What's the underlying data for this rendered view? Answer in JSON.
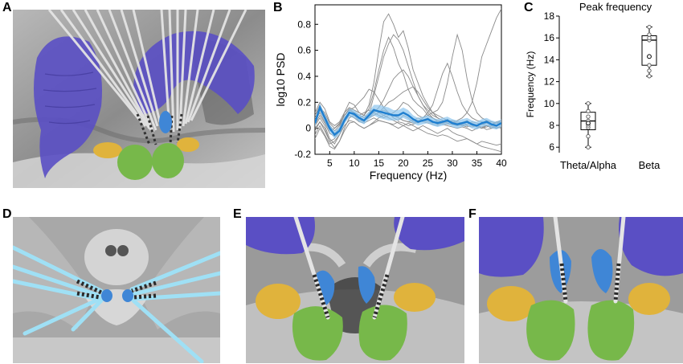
{
  "panels": {
    "a": {
      "letter": "A"
    },
    "b": {
      "letter": "B"
    },
    "c": {
      "letter": "C"
    },
    "d": {
      "letter": "D"
    },
    "e": {
      "letter": "E"
    },
    "f": {
      "letter": "F"
    }
  },
  "colors": {
    "bg_gray": "#8a8a8a",
    "striatum_purple": "#5a4fc4",
    "stn_green": "#77b84a",
    "thalamus_yellow": "#e0b33c",
    "red_nucleus_blue": "#3f86d6",
    "electrode_gray": "#d8d8d8",
    "electrode_cyan": "#9fe0f5",
    "psd_trace": "#8a8a8a",
    "psd_mean": "#1f7fd0",
    "psd_band": "#8cc4ee"
  },
  "chart_data": [
    {
      "type": "line",
      "panel": "B",
      "xlabel": "Frequency (Hz)",
      "ylabel": "log10 PSD",
      "xlim": [
        2,
        40
      ],
      "ylim": [
        -0.2,
        0.95
      ],
      "xticks": [
        5,
        10,
        15,
        20,
        25,
        30,
        35,
        40
      ],
      "yticks": [
        -0.2,
        0,
        0.2,
        0.4,
        0.6,
        0.8
      ],
      "x": [
        2,
        3,
        4,
        5,
        6,
        7,
        8,
        9,
        10,
        11,
        12,
        13,
        14,
        15,
        16,
        17,
        18,
        19,
        20,
        21,
        22,
        23,
        24,
        25,
        26,
        27,
        28,
        29,
        30,
        31,
        32,
        33,
        34,
        35,
        36,
        37,
        38,
        39,
        40
      ],
      "series": [
        {
          "values": [
            0.05,
            0.12,
            0.05,
            -0.02,
            0.0,
            0.03,
            0.1,
            0.14,
            0.12,
            0.1,
            0.08,
            0.12,
            0.15,
            0.12,
            0.1,
            0.12,
            0.08,
            0.06,
            0.1,
            0.08,
            0.05,
            0.04,
            0.06,
            0.08,
            0.05,
            0.03,
            0.05,
            0.07,
            0.04,
            0.02,
            0.04,
            0.06,
            0.03,
            0.02,
            0.04,
            0.06,
            0.03,
            0.02,
            0.05
          ]
        },
        {
          "values": [
            0.1,
            0.18,
            0.1,
            0.02,
            -0.05,
            0.0,
            0.12,
            0.2,
            0.18,
            0.12,
            0.1,
            0.15,
            0.28,
            0.45,
            0.6,
            0.7,
            0.62,
            0.5,
            0.42,
            0.3,
            0.22,
            0.18,
            0.15,
            0.1,
            0.08,
            0.06,
            0.05,
            0.04,
            0.03,
            0.04,
            0.02,
            0.01,
            0.03,
            0.02,
            0.01,
            0.02,
            0.0,
            0.02,
            0.03
          ]
        },
        {
          "values": [
            0.02,
            0.08,
            0.02,
            -0.08,
            -0.12,
            -0.05,
            0.05,
            0.12,
            0.1,
            0.08,
            0.1,
            0.18,
            0.35,
            0.6,
            0.82,
            0.88,
            0.8,
            0.7,
            0.75,
            0.62,
            0.45,
            0.35,
            0.25,
            0.18,
            0.12,
            0.1,
            0.08,
            0.06,
            0.05,
            0.04,
            0.03,
            0.05,
            0.02,
            0.01,
            0.0,
            0.02,
            0.01,
            0.0,
            0.02
          ]
        },
        {
          "values": [
            -0.02,
            0.05,
            0.0,
            -0.1,
            -0.15,
            -0.1,
            0.0,
            0.08,
            0.1,
            0.06,
            0.05,
            0.1,
            0.25,
            0.4,
            0.55,
            0.65,
            0.72,
            0.68,
            0.6,
            0.48,
            0.36,
            0.25,
            0.18,
            0.12,
            0.08,
            0.05,
            0.03,
            0.02,
            0.01,
            0.0,
            0.01,
            0.0,
            -0.02,
            0.0,
            0.01,
            -0.01,
            0.0,
            0.01,
            0.0
          ]
        },
        {
          "values": [
            0.08,
            0.15,
            0.1,
            0.02,
            -0.02,
            0.02,
            0.1,
            0.15,
            0.12,
            0.1,
            0.12,
            0.14,
            0.12,
            0.1,
            0.08,
            0.1,
            0.12,
            0.15,
            0.2,
            0.18,
            0.14,
            0.1,
            0.08,
            0.1,
            0.12,
            0.14,
            0.2,
            0.35,
            0.55,
            0.72,
            0.6,
            0.38,
            0.22,
            0.12,
            0.08,
            0.06,
            0.05,
            0.04,
            0.05
          ]
        },
        {
          "values": [
            0.0,
            0.05,
            -0.02,
            -0.1,
            -0.08,
            -0.02,
            0.05,
            0.1,
            0.08,
            0.05,
            0.04,
            0.06,
            0.08,
            0.06,
            0.05,
            0.04,
            0.03,
            0.05,
            0.04,
            0.02,
            0.03,
            0.05,
            0.08,
            0.12,
            0.18,
            0.3,
            0.42,
            0.5,
            0.4,
            0.28,
            0.18,
            0.12,
            0.08,
            0.06,
            0.05,
            0.04,
            0.03,
            0.05,
            0.06
          ]
        },
        {
          "values": [
            0.12,
            0.2,
            0.15,
            0.05,
            0.02,
            0.05,
            0.12,
            0.16,
            0.14,
            0.12,
            0.1,
            0.08,
            0.1,
            0.12,
            0.14,
            0.12,
            0.1,
            0.08,
            0.06,
            0.05,
            0.04,
            0.06,
            0.05,
            0.04,
            0.03,
            0.02,
            0.04,
            0.05,
            0.04,
            0.06,
            0.08,
            0.12,
            0.2,
            0.35,
            0.55,
            0.65,
            0.75,
            0.85,
            0.92
          ]
        },
        {
          "values": [
            -0.05,
            0.02,
            -0.05,
            -0.12,
            -0.1,
            -0.05,
            0.02,
            0.06,
            0.05,
            0.02,
            0.0,
            0.02,
            0.05,
            0.08,
            0.1,
            0.08,
            0.06,
            0.04,
            0.02,
            0.0,
            -0.02,
            0.0,
            0.02,
            0.0,
            -0.02,
            -0.04,
            -0.02,
            0.0,
            -0.03,
            -0.05,
            -0.06,
            -0.08,
            -0.1,
            -0.12,
            -0.14,
            -0.15,
            -0.16,
            -0.17,
            -0.18
          ]
        },
        {
          "values": [
            0.06,
            0.14,
            0.08,
            0.0,
            -0.04,
            0.0,
            0.08,
            0.12,
            0.1,
            0.08,
            0.06,
            0.08,
            0.12,
            0.16,
            0.22,
            0.3,
            0.38,
            0.42,
            0.45,
            0.4,
            0.32,
            0.25,
            0.18,
            0.14,
            0.1,
            0.08,
            0.06,
            0.05,
            0.06,
            0.05,
            0.04,
            0.03,
            0.05,
            0.04,
            0.03,
            0.04,
            0.05,
            0.04,
            0.06
          ]
        },
        {
          "values": [
            0.03,
            0.1,
            0.04,
            -0.04,
            -0.06,
            -0.02,
            0.06,
            0.1,
            0.08,
            0.06,
            0.06,
            0.08,
            0.1,
            0.12,
            0.16,
            0.2,
            0.22,
            0.25,
            0.28,
            0.3,
            0.32,
            0.28,
            0.22,
            0.16,
            0.12,
            0.08,
            0.06,
            0.04,
            0.03,
            0.02,
            0.03,
            0.02,
            0.01,
            0.02,
            0.0,
            0.01,
            0.02,
            0.0,
            0.01
          ]
        },
        {
          "values": [
            0.1,
            0.16,
            0.12,
            0.04,
            0.0,
            0.04,
            0.1,
            0.14,
            0.16,
            0.2,
            0.24,
            0.3,
            0.28,
            0.22,
            0.16,
            0.12,
            0.1,
            0.08,
            0.06,
            0.05,
            0.06,
            0.08,
            0.06,
            0.05,
            0.04,
            0.05,
            0.04,
            0.03,
            0.04,
            0.03,
            0.02,
            0.03,
            0.04,
            0.02,
            0.03,
            0.02,
            0.03,
            0.04,
            0.03
          ]
        },
        {
          "values": [
            -0.08,
            0.0,
            -0.06,
            -0.14,
            -0.16,
            -0.1,
            -0.02,
            0.04,
            0.05,
            0.02,
            0.0,
            0.02,
            0.04,
            0.06,
            0.05,
            0.04,
            0.02,
            0.0,
            0.02,
            0.04,
            0.02,
            0.0,
            -0.02,
            -0.04,
            -0.05,
            -0.06,
            -0.05,
            -0.06,
            -0.08,
            -0.1,
            -0.09,
            -0.08,
            -0.1,
            -0.12,
            -0.1,
            -0.11,
            -0.12,
            -0.13,
            -0.12
          ]
        }
      ],
      "mean": [
        0.04,
        0.16,
        0.08,
        0.0,
        -0.05,
        -0.02,
        0.06,
        0.12,
        0.11,
        0.08,
        0.06,
        0.1,
        0.14,
        0.13,
        0.12,
        0.11,
        0.1,
        0.1,
        0.12,
        0.1,
        0.07,
        0.05,
        0.06,
        0.07,
        0.05,
        0.04,
        0.05,
        0.06,
        0.04,
        0.03,
        0.04,
        0.05,
        0.03,
        0.02,
        0.04,
        0.05,
        0.03,
        0.02,
        0.04
      ],
      "sem": [
        0.03,
        0.03,
        0.03,
        0.03,
        0.03,
        0.03,
        0.03,
        0.03,
        0.03,
        0.03,
        0.03,
        0.03,
        0.04,
        0.05,
        0.05,
        0.05,
        0.04,
        0.04,
        0.04,
        0.04,
        0.03,
        0.03,
        0.03,
        0.03,
        0.03,
        0.03,
        0.03,
        0.03,
        0.03,
        0.03,
        0.03,
        0.03,
        0.03,
        0.03,
        0.03,
        0.03,
        0.03,
        0.03,
        0.03
      ],
      "grid": false
    },
    {
      "type": "box",
      "panel": "C",
      "title": "Peak frequency",
      "ylabel": "Frequency (Hz)",
      "categories": [
        "Theta/Alpha",
        "Beta"
      ],
      "ylim": [
        5.5,
        18
      ],
      "yticks": [
        6,
        8,
        10,
        12,
        14,
        16,
        18
      ],
      "boxes": [
        {
          "min": 6.0,
          "q1": 7.6,
          "median": 8.4,
          "q3": 9.2,
          "max": 10.0,
          "mean": 8.2,
          "points": [
            6.0,
            7.0,
            7.8,
            8.0,
            8.4,
            8.8,
            9.3,
            10.0
          ]
        },
        {
          "min": 12.5,
          "q1": 13.5,
          "median": 15.8,
          "q3": 16.2,
          "max": 17.0,
          "mean": 14.3,
          "points": [
            12.5,
            13.0,
            13.5,
            14.3,
            15.8,
            16.0,
            16.3,
            17.0
          ]
        }
      ],
      "grid": false
    }
  ]
}
